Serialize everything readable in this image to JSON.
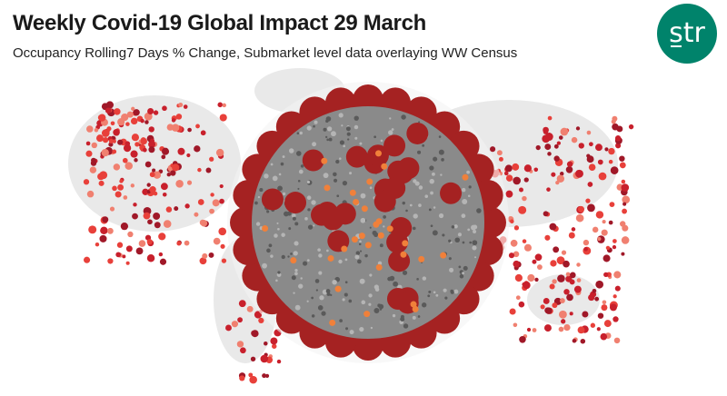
{
  "header": {
    "title": "Weekly Covid-19 Global Impact 29 March",
    "subtitle": "Occupancy Rolling7 Days % Change, Submarket level data overlaying WW Census"
  },
  "logo": {
    "text": "str",
    "color": "#00836b"
  },
  "map": {
    "land_color": "#e9e9e9",
    "dot_colors": [
      "#e8403a",
      "#c8202c",
      "#f08070",
      "#a01828"
    ]
  },
  "virus": {
    "body_color": "#8a8a8a",
    "spike_color": "#a52222",
    "accent_color": "#f0803a"
  }
}
